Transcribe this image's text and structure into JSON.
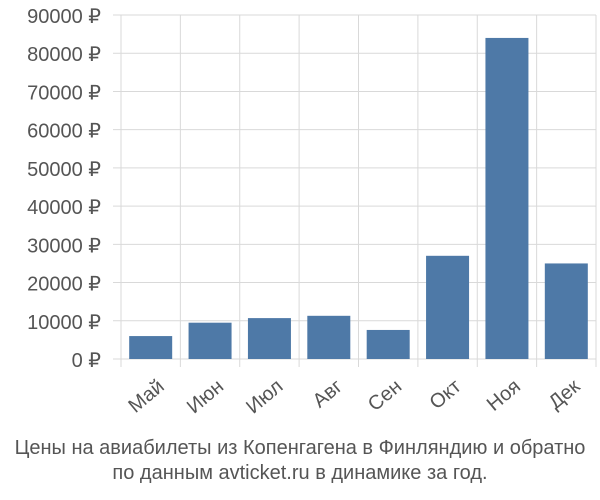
{
  "colors": {
    "bar": "#4e79a7",
    "grid": "#d9d9d9",
    "axis": "#d9d9d9",
    "text": "#555555"
  },
  "caption": {
    "line1": "Цены на авиабилеты из Копенгагена в Финляндию и обратно",
    "line2": "по данным avticket.ru в динамике за год."
  },
  "chart_data": {
    "type": "bar",
    "title": "",
    "xlabel": "",
    "ylabel": "",
    "categories": [
      "Май",
      "Июн",
      "Июл",
      "Авг",
      "Сен",
      "Окт",
      "Ноя",
      "Дек"
    ],
    "values": [
      6000,
      9500,
      10700,
      11300,
      7600,
      27000,
      84000,
      25000
    ],
    "ylim": [
      0,
      90000
    ],
    "yticks": [
      0,
      10000,
      20000,
      30000,
      40000,
      50000,
      60000,
      70000,
      80000,
      90000
    ],
    "ytick_labels": [
      "0 ₽",
      "10000 ₽",
      "20000 ₽",
      "30000 ₽",
      "40000 ₽",
      "50000 ₽",
      "60000 ₽",
      "70000 ₽",
      "80000 ₽",
      "90000 ₽"
    ],
    "grid": true,
    "legend": "none"
  }
}
